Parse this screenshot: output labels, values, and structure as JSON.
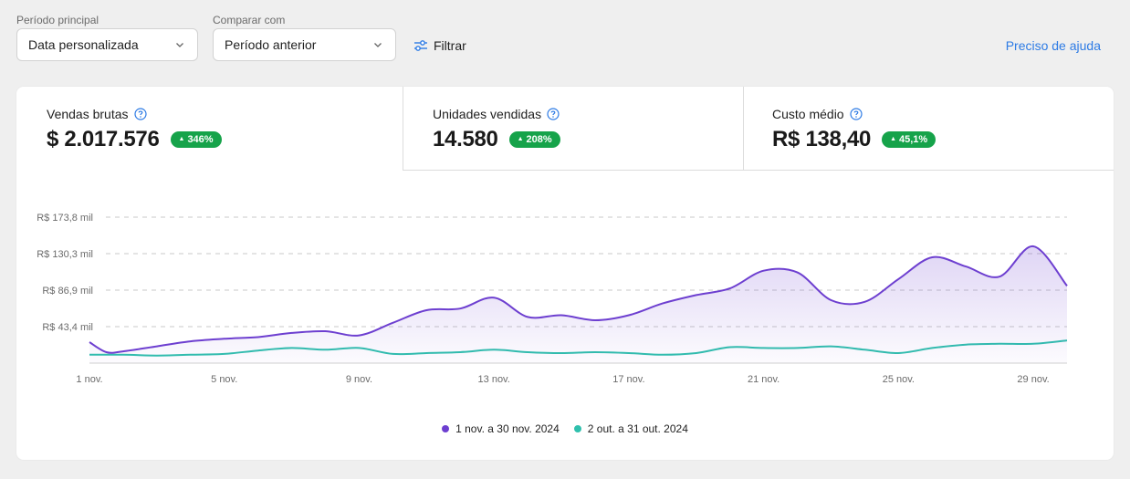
{
  "filters": {
    "primary_period": {
      "label": "Período principal",
      "value": "Data personalizada"
    },
    "compare_with": {
      "label": "Comparar com",
      "value": "Período anterior"
    },
    "filter_button": "Filtrar",
    "help_link": "Preciso de ajuda"
  },
  "kpis": [
    {
      "title": "Vendas brutas",
      "value": "$ 2.017.576",
      "change": "346%"
    },
    {
      "title": "Unidades vendidas",
      "value": "14.580",
      "change": "208%"
    },
    {
      "title": "Custo médio",
      "value": "R$ 138,40",
      "change": "45,1%"
    }
  ],
  "colors": {
    "primary": "#6d3fd0",
    "comparison": "#2fc0ad",
    "positive": "#16a34a",
    "link": "#2d7be5"
  },
  "chart_data": {
    "type": "area",
    "y_ticks": [
      "R$ 173,8 mil",
      "R$ 130,3 mil",
      "R$ 86,9 mil",
      "R$ 43,4 mil"
    ],
    "y_tick_values": [
      173.8,
      130.3,
      86.9,
      43.4
    ],
    "ylim": [
      0,
      173.8
    ],
    "y_unit": "R$ mil",
    "x_tick_labels": [
      "1 nov.",
      "5 nov.",
      "9 nov.",
      "13 nov.",
      "17 nov.",
      "21 nov.",
      "25 nov.",
      "29 nov."
    ],
    "x_tick_days": [
      1,
      5,
      9,
      13,
      17,
      21,
      25,
      29
    ],
    "x_range": [
      1,
      30
    ],
    "grid": true,
    "legend_position": "bottom",
    "series": [
      {
        "name": "1 nov. a 30 nov. 2024",
        "color": "#6d3fd0",
        "fill": true,
        "x": [
          1,
          1.5,
          2,
          3,
          4,
          5,
          6,
          7,
          8,
          9,
          10,
          11,
          12,
          13,
          14,
          15,
          16,
          17,
          18,
          19,
          20,
          21,
          22,
          23,
          24,
          25,
          26,
          27,
          28,
          29,
          30
        ],
        "values": [
          25,
          13,
          14,
          20,
          26,
          29,
          31,
          36,
          38,
          33,
          48,
          63,
          65,
          78,
          55,
          57,
          51,
          57,
          71,
          81,
          89,
          110,
          108,
          75,
          73,
          100,
          126,
          115,
          103,
          139,
          92
        ]
      },
      {
        "name": "2 out. a 31 out. 2024",
        "color": "#2fc0ad",
        "fill": false,
        "x": [
          1,
          2,
          3,
          4,
          5,
          6,
          7,
          8,
          9,
          10,
          11,
          12,
          13,
          14,
          15,
          16,
          17,
          18,
          19,
          20,
          21,
          22,
          23,
          24,
          25,
          26,
          27,
          28,
          29,
          30
        ],
        "values": [
          10,
          10,
          9,
          10,
          11,
          15,
          18,
          16,
          18,
          11,
          12,
          13,
          16,
          13,
          12,
          13,
          12,
          10,
          12,
          19,
          18,
          18,
          20,
          16,
          12,
          18,
          22,
          23,
          23,
          27
        ]
      }
    ]
  }
}
